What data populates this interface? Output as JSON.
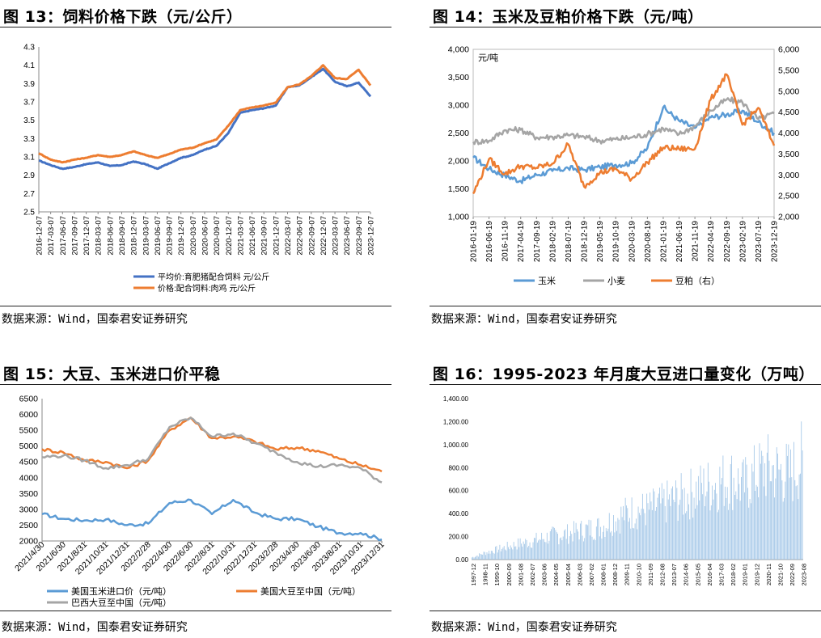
{
  "panels": [
    {
      "title": "图 13：饲料价格下跌（元/公斤）",
      "source": "数据来源：Wind，国泰君安证券研究"
    },
    {
      "title": "图 14：玉米及豆粕价格下跌（元/吨）",
      "source": "数据来源：Wind，国泰君安证券研究"
    },
    {
      "title": "图 15：大豆、玉米进口价平稳",
      "source": "数据来源：Wind，国泰君安证券研究"
    },
    {
      "title": "图 16：1995-2023 年月度大豆进口量变化（万吨）",
      "source": "数据来源：Wind，国泰君安证券研究"
    }
  ],
  "chart_data": [
    {
      "type": "line",
      "ylim": [
        2.5,
        4.3
      ],
      "yticks": [
        "2.5",
        "2.7",
        "2.9",
        "3.1",
        "3.3",
        "3.5",
        "3.7",
        "3.9",
        "4.1",
        "4.3"
      ],
      "x": [
        "2016-12-07",
        "2017-03-07",
        "2017-06-07",
        "2017-09-07",
        "2017-12-07",
        "2018-03-07",
        "2018-06-07",
        "2018-09-07",
        "2018-12-07",
        "2019-03-07",
        "2019-06-07",
        "2019-09-07",
        "2019-12-07",
        "2020-03-07",
        "2020-06-07",
        "2020-09-07",
        "2020-12-07",
        "2021-03-07",
        "2021-06-07",
        "2021-09-07",
        "2021-12-07",
        "2022-03-07",
        "2022-06-07",
        "2022-09-07",
        "2022-12-07",
        "2023-03-07",
        "2023-06-07",
        "2023-09-07",
        "2023-12-07"
      ],
      "legend_position": "bottom",
      "series": [
        {
          "name": "平均价:育肥猪配合饲料 元/公斤",
          "color": "#4472C4",
          "values": [
            3.06,
            3.01,
            2.97,
            2.99,
            3.02,
            3.04,
            3.0,
            3.01,
            3.05,
            3.02,
            2.97,
            3.03,
            3.09,
            3.12,
            3.18,
            3.22,
            3.36,
            3.58,
            3.61,
            3.63,
            3.66,
            3.86,
            3.88,
            3.97,
            4.06,
            3.92,
            3.87,
            3.91,
            3.76
          ]
        },
        {
          "name": "价格:配合饲料:肉鸡 元/公斤",
          "color": "#ED7D31",
          "values": [
            3.14,
            3.07,
            3.04,
            3.07,
            3.09,
            3.12,
            3.1,
            3.12,
            3.16,
            3.12,
            3.09,
            3.13,
            3.18,
            3.2,
            3.25,
            3.29,
            3.44,
            3.61,
            3.64,
            3.66,
            3.69,
            3.86,
            3.89,
            3.98,
            4.1,
            3.96,
            3.95,
            4.05,
            3.88
          ]
        }
      ]
    },
    {
      "type": "line",
      "ylabel": "元/吨",
      "ylim": [
        1000,
        4000
      ],
      "yticks": [
        "1,000",
        "1,500",
        "2,000",
        "2,500",
        "3,000",
        "3,500",
        "4,000"
      ],
      "ylim_right": [
        2000,
        6000
      ],
      "yticks_right": [
        "2,000",
        "2,500",
        "3,000",
        "3,500",
        "4,000",
        "4,500",
        "5,000",
        "5,500",
        "6,000"
      ],
      "x": [
        "2016-01-19",
        "2016-06-19",
        "2016-11-19",
        "2017-04-19",
        "2017-09-19",
        "2018-02-19",
        "2018-07-19",
        "2018-12-19",
        "2019-05-19",
        "2019-10-19",
        "2020-03-19",
        "2020-08-19",
        "2021-01-19",
        "2021-06-19",
        "2021-11-19",
        "2022-04-19",
        "2022-09-19",
        "2023-02-19",
        "2023-07-19",
        "2023-12-19"
      ],
      "legend_position": "bottom",
      "series": [
        {
          "name": "玉米",
          "axis": "left",
          "color": "#5B9BD5",
          "values": [
            2060,
            1860,
            1740,
            1640,
            1750,
            1820,
            1870,
            1840,
            1890,
            1930,
            1960,
            2230,
            2960,
            2720,
            2590,
            2780,
            2830,
            2900,
            2700,
            2500
          ]
        },
        {
          "name": "小麦",
          "axis": "left",
          "color": "#A5A5A5",
          "values": [
            2340,
            2360,
            2550,
            2560,
            2420,
            2430,
            2460,
            2430,
            2360,
            2390,
            2420,
            2480,
            2580,
            2480,
            2620,
            2900,
            3100,
            3050,
            2750,
            2850
          ]
        },
        {
          "name": "豆粕（右）",
          "axis": "right",
          "color": "#ED7D31",
          "values": [
            2550,
            3380,
            3020,
            3210,
            3170,
            3270,
            3730,
            2720,
            3050,
            3140,
            2900,
            3300,
            3650,
            3620,
            3620,
            4800,
            5400,
            4200,
            4600,
            3700
          ]
        }
      ]
    },
    {
      "type": "line",
      "ylim": [
        2000,
        6500
      ],
      "yticks": [
        "2000",
        "2500",
        "3000",
        "3500",
        "4000",
        "4500",
        "5000",
        "5500",
        "6000",
        "6500"
      ],
      "x": [
        "2021/4/30",
        "2021/6/30",
        "2021/8/31",
        "2021/10/31",
        "2021/12/31",
        "2022/2/28",
        "2022/4/30",
        "2022/6/30",
        "2022/8/31",
        "2022/10/31",
        "2022/12/31",
        "2023/2/28",
        "2023/4/30",
        "2023/6/30",
        "2023/8/31",
        "2023/10/31",
        "2023/12/31"
      ],
      "legend_position": "bottom",
      "series": [
        {
          "name": "美国玉米进口价（元/吨）",
          "color": "#5B9BD5",
          "values": [
            2850,
            2700,
            2650,
            2680,
            2500,
            2550,
            3200,
            3300,
            2850,
            3300,
            2900,
            2700,
            2700,
            2450,
            2250,
            2250,
            2050
          ]
        },
        {
          "name": "美国大豆至中国（元/吨）",
          "color": "#ED7D31",
          "values": [
            4900,
            4800,
            4550,
            4500,
            4300,
            4550,
            5500,
            5900,
            5250,
            5300,
            5150,
            4900,
            4950,
            4850,
            4600,
            4400,
            4200
          ]
        },
        {
          "name": "巴西大豆至中国（元/吨）",
          "color": "#A5A5A5",
          "values": [
            4650,
            4700,
            4550,
            4300,
            4400,
            4600,
            5600,
            5900,
            5300,
            5400,
            5100,
            4800,
            4500,
            4350,
            4400,
            4300,
            3850
          ]
        }
      ]
    },
    {
      "type": "bar",
      "ylim": [
        0,
        1400
      ],
      "yticks": [
        "0.00",
        "200.00",
        "400.00",
        "600.00",
        "800.00",
        "1,000.00",
        "1,200.00",
        "1,400.00"
      ],
      "categories": [
        "1997-12",
        "1998-11",
        "1999-10",
        "2000-09",
        "2001-08",
        "2002-07",
        "2003-06",
        "2004-05",
        "2005-04",
        "2006-03",
        "2007-02",
        "2008-01",
        "2008-12",
        "2009-11",
        "2010-10",
        "2011-09",
        "2012-08",
        "2013-07",
        "2014-06",
        "2015-05",
        "2016-04",
        "2017-03",
        "2018-02",
        "2019-01",
        "2019-12",
        "2020-11",
        "2021-10",
        "2022-09",
        "2023-08"
      ],
      "category_values": [
        20,
        60,
        90,
        120,
        150,
        170,
        200,
        230,
        240,
        270,
        290,
        310,
        380,
        430,
        460,
        470,
        510,
        560,
        590,
        650,
        690,
        730,
        760,
        690,
        790,
        860,
        830,
        800,
        950
      ],
      "color": "#9DC3E6"
    }
  ]
}
